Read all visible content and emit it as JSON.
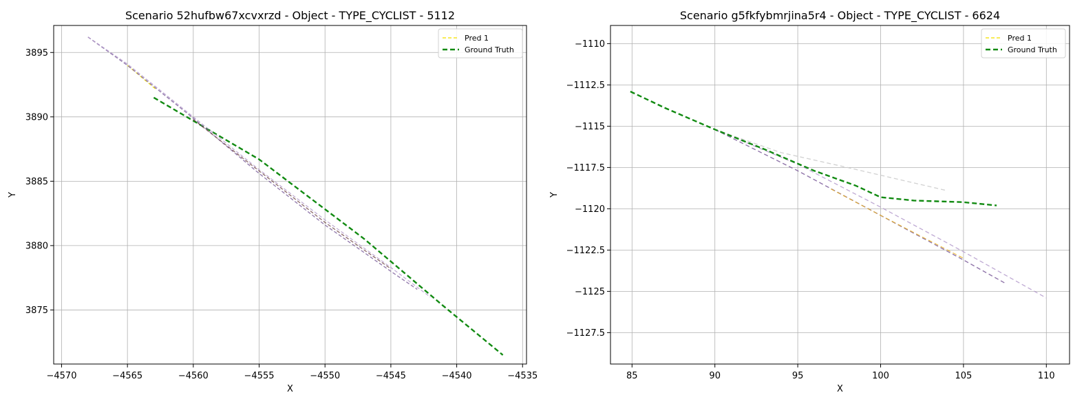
{
  "chart_data": [
    {
      "type": "line",
      "title": "Scenario 52hufbw67xcvxrzd - Object - TYPE_CYCLIST - 5112",
      "xlabel": "X",
      "ylabel": "Y",
      "xlim": [
        -4570.6,
        -4534.7
      ],
      "ylim": [
        3870.8,
        3897.1
      ],
      "xticks": [
        -4570,
        -4565,
        -4560,
        -4555,
        -4550,
        -4545,
        -4540,
        -4535
      ],
      "yticks": [
        3875,
        3880,
        3885,
        3890,
        3895
      ],
      "grid": true,
      "legend_position": "top-right",
      "legend": [
        {
          "label": "Pred 1",
          "color": "#f5e61f"
        },
        {
          "label": "Ground Truth",
          "color": "#118a11"
        }
      ],
      "series": [
        {
          "name": "Ground Truth",
          "color": "#118a11",
          "width": 2.4,
          "dash": "7,4",
          "opacity": 1,
          "x": [
            -4563.0,
            -4555.0,
            -4547.0,
            -4541.0,
            -4536.5
          ],
          "y": [
            3891.5,
            3886.7,
            3880.5,
            3875.3,
            3871.5
          ]
        },
        {
          "color": "#f5e61f",
          "width": 1.3,
          "dash": "5,3",
          "opacity": 1,
          "x": [
            -4565.0,
            -4562.8
          ],
          "y": [
            3894.0,
            3892.1
          ]
        },
        {
          "color": "#7b5c9a",
          "width": 1.4,
          "dash": "5,3",
          "opacity": 0.8,
          "x": [
            -4568.0,
            -4565.0,
            -4560.0,
            -4555.0,
            -4550.0,
            -4545.0,
            -4543.0
          ],
          "y": [
            3896.2,
            3894.0,
            3889.9,
            3885.6,
            3881.6,
            3878.0,
            3876.6
          ]
        },
        {
          "color": "#b39acb",
          "width": 1.3,
          "dash": "5,3",
          "opacity": 0.8,
          "x": [
            -4568.0,
            -4565.0,
            -4560.0,
            -4555.0,
            -4550.0,
            -4545.0,
            -4542.0
          ],
          "y": [
            3896.2,
            3894.1,
            3890.0,
            3885.9,
            3882.0,
            3878.3,
            3876.0
          ]
        },
        {
          "color": "#5a2a2a",
          "width": 1.3,
          "dash": "5,3",
          "opacity": 0.7,
          "x": [
            -4560.0,
            -4555.0,
            -4550.0,
            -4545.0
          ],
          "y": [
            3889.8,
            3885.8,
            3881.8,
            3878.2
          ]
        }
      ]
    },
    {
      "type": "line",
      "title": "Scenario g5fkfybmrjina5r4 - Object - TYPE_CYCLIST - 6624",
      "xlabel": "X",
      "ylabel": "Y",
      "xlim": [
        83.7,
        111.4
      ],
      "ylim": [
        -1129.4,
        -1108.9
      ],
      "xticks": [
        85,
        90,
        95,
        100,
        105,
        110
      ],
      "yticks": [
        -1110.0,
        -1112.5,
        -1115.0,
        -1117.5,
        -1120.0,
        -1122.5,
        -1125.0,
        -1127.5
      ],
      "grid": true,
      "legend_position": "top-right",
      "legend": [
        {
          "label": "Pred 1",
          "color": "#f5e61f"
        },
        {
          "label": "Ground Truth",
          "color": "#118a11"
        }
      ],
      "series": [
        {
          "color": "#cccccc",
          "width": 1.3,
          "dash": "6,4",
          "opacity": 0.9,
          "x": [
            90.0,
            94.0,
            98.0,
            104.0
          ],
          "y": [
            -1115.2,
            -1116.6,
            -1117.5,
            -1118.9
          ]
        },
        {
          "color": "#b39acb",
          "width": 1.3,
          "dash": "6,4",
          "opacity": 0.85,
          "x": [
            90.0,
            95.0,
            100.0,
            105.0,
            110.0
          ],
          "y": [
            -1115.2,
            -1117.3,
            -1119.9,
            -1122.6,
            -1125.4
          ]
        },
        {
          "color": "#7b5c9a",
          "width": 1.4,
          "dash": "6,4",
          "opacity": 0.85,
          "x": [
            90.0,
            95.0,
            100.0,
            105.0,
            107.5
          ],
          "y": [
            -1115.2,
            -1117.7,
            -1120.4,
            -1123.1,
            -1124.5
          ]
        },
        {
          "color": "#e8b020",
          "width": 1.3,
          "dash": "6,4",
          "opacity": 0.8,
          "x": [
            97.0,
            100.0,
            105.0
          ],
          "y": [
            -1118.8,
            -1120.4,
            -1123.0
          ]
        },
        {
          "name": "Ground Truth",
          "color": "#118a11",
          "width": 2.4,
          "dash": "7,4",
          "opacity": 1,
          "x": [
            84.9,
            87.0,
            90.0,
            93.0,
            96.0,
            98.5,
            100.0,
            102.0,
            105.0,
            107.0
          ],
          "y": [
            -1112.9,
            -1113.9,
            -1115.2,
            -1116.4,
            -1117.7,
            -1118.6,
            -1119.3,
            -1119.5,
            -1119.6,
            -1119.8
          ]
        }
      ]
    }
  ]
}
